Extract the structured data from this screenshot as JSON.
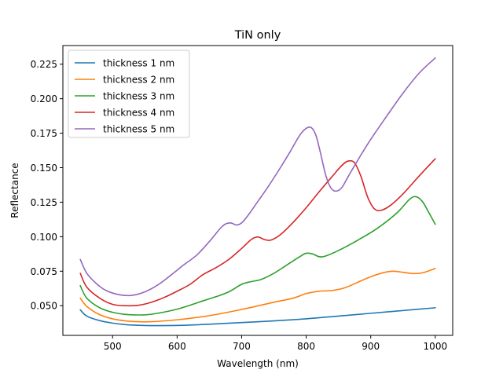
{
  "chart_data": {
    "type": "line",
    "title": "TiN only",
    "xlabel": "Wavelength (nm)",
    "ylabel": "Reflectance",
    "xlim": [
      423,
      1027
    ],
    "ylim": [
      0.0285,
      0.2385
    ],
    "xticks": [
      500,
      600,
      700,
      800,
      900,
      1000
    ],
    "xtick_labels": [
      "500",
      "600",
      "700",
      "800",
      "900",
      "1000"
    ],
    "yticks": [
      0.05,
      0.075,
      0.1,
      0.125,
      0.15,
      0.175,
      0.2,
      0.225
    ],
    "ytick_labels": [
      "0.050",
      "0.075",
      "0.100",
      "0.125",
      "0.150",
      "0.175",
      "0.200",
      "0.225"
    ],
    "grid": false,
    "legend_position": "upper-left",
    "series": [
      {
        "name": "thickness 1 nm",
        "color": "#1f77b4",
        "points": [
          [
            450,
            0.047
          ],
          [
            460,
            0.0425
          ],
          [
            480,
            0.0392
          ],
          [
            500,
            0.0374
          ],
          [
            520,
            0.0363
          ],
          [
            540,
            0.0358
          ],
          [
            560,
            0.0356
          ],
          [
            600,
            0.0357
          ],
          [
            650,
            0.0366
          ],
          [
            700,
            0.0378
          ],
          [
            750,
            0.039
          ],
          [
            800,
            0.0405
          ],
          [
            850,
            0.0425
          ],
          [
            900,
            0.0445
          ],
          [
            950,
            0.0465
          ],
          [
            1000,
            0.0485
          ]
        ]
      },
      {
        "name": "thickness 2 nm",
        "color": "#ff7f0e",
        "points": [
          [
            450,
            0.0555
          ],
          [
            460,
            0.0495
          ],
          [
            480,
            0.0435
          ],
          [
            500,
            0.0405
          ],
          [
            520,
            0.039
          ],
          [
            540,
            0.0384
          ],
          [
            560,
            0.0384
          ],
          [
            600,
            0.0398
          ],
          [
            650,
            0.0428
          ],
          [
            700,
            0.0473
          ],
          [
            750,
            0.0525
          ],
          [
            780,
            0.0555
          ],
          [
            800,
            0.0588
          ],
          [
            820,
            0.0605
          ],
          [
            840,
            0.061
          ],
          [
            860,
            0.063
          ],
          [
            880,
            0.067
          ],
          [
            900,
            0.071
          ],
          [
            920,
            0.074
          ],
          [
            935,
            0.075
          ],
          [
            950,
            0.0742
          ],
          [
            965,
            0.0733
          ],
          [
            980,
            0.0738
          ],
          [
            1000,
            0.077
          ]
        ]
      },
      {
        "name": "thickness 3 nm",
        "color": "#2ca02c",
        "points": [
          [
            450,
            0.0645
          ],
          [
            460,
            0.0555
          ],
          [
            480,
            0.0485
          ],
          [
            500,
            0.0452
          ],
          [
            520,
            0.0437
          ],
          [
            540,
            0.0433
          ],
          [
            560,
            0.0438
          ],
          [
            600,
            0.0475
          ],
          [
            640,
            0.0535
          ],
          [
            660,
            0.0565
          ],
          [
            680,
            0.06
          ],
          [
            700,
            0.0655
          ],
          [
            715,
            0.0675
          ],
          [
            730,
            0.069
          ],
          [
            750,
            0.0735
          ],
          [
            770,
            0.0795
          ],
          [
            790,
            0.0855
          ],
          [
            800,
            0.088
          ],
          [
            810,
            0.0875
          ],
          [
            820,
            0.0855
          ],
          [
            830,
            0.086
          ],
          [
            850,
            0.09
          ],
          [
            880,
            0.0975
          ],
          [
            910,
            0.106
          ],
          [
            940,
            0.117
          ],
          [
            960,
            0.127
          ],
          [
            970,
            0.129
          ],
          [
            980,
            0.1255
          ],
          [
            990,
            0.1175
          ],
          [
            1000,
            0.109
          ]
        ]
      },
      {
        "name": "thickness 4 nm",
        "color": "#d62728",
        "points": [
          [
            450,
            0.0735
          ],
          [
            460,
            0.0635
          ],
          [
            480,
            0.0555
          ],
          [
            500,
            0.051
          ],
          [
            520,
            0.05
          ],
          [
            540,
            0.0503
          ],
          [
            560,
            0.0525
          ],
          [
            580,
            0.056
          ],
          [
            600,
            0.0605
          ],
          [
            620,
            0.0655
          ],
          [
            640,
            0.0725
          ],
          [
            660,
            0.0775
          ],
          [
            680,
            0.0835
          ],
          [
            700,
            0.0915
          ],
          [
            715,
            0.098
          ],
          [
            725,
            0.0998
          ],
          [
            735,
            0.098
          ],
          [
            745,
            0.0975
          ],
          [
            760,
            0.1015
          ],
          [
            780,
            0.1105
          ],
          [
            800,
            0.121
          ],
          [
            820,
            0.1325
          ],
          [
            840,
            0.1435
          ],
          [
            855,
            0.1515
          ],
          [
            865,
            0.1548
          ],
          [
            875,
            0.1535
          ],
          [
            885,
            0.1435
          ],
          [
            895,
            0.129
          ],
          [
            905,
            0.1205
          ],
          [
            915,
            0.119
          ],
          [
            930,
            0.1225
          ],
          [
            950,
            0.131
          ],
          [
            975,
            0.144
          ],
          [
            1000,
            0.1565
          ]
        ]
      },
      {
        "name": "thickness 5 nm",
        "color": "#9467bd",
        "points": [
          [
            450,
            0.0835
          ],
          [
            460,
            0.0735
          ],
          [
            475,
            0.066
          ],
          [
            490,
            0.061
          ],
          [
            510,
            0.058
          ],
          [
            530,
            0.0575
          ],
          [
            550,
            0.06
          ],
          [
            570,
            0.065
          ],
          [
            590,
            0.072
          ],
          [
            610,
            0.0795
          ],
          [
            630,
            0.0865
          ],
          [
            650,
            0.0965
          ],
          [
            670,
            0.1075
          ],
          [
            682,
            0.11
          ],
          [
            692,
            0.1085
          ],
          [
            700,
            0.11
          ],
          [
            710,
            0.1155
          ],
          [
            725,
            0.1255
          ],
          [
            740,
            0.1355
          ],
          [
            760,
            0.15
          ],
          [
            775,
            0.1615
          ],
          [
            790,
            0.1735
          ],
          [
            800,
            0.1785
          ],
          [
            808,
            0.179
          ],
          [
            815,
            0.1735
          ],
          [
            822,
            0.161
          ],
          [
            830,
            0.145
          ],
          [
            838,
            0.1355
          ],
          [
            846,
            0.133
          ],
          [
            855,
            0.1355
          ],
          [
            865,
            0.1435
          ],
          [
            880,
            0.1555
          ],
          [
            900,
            0.1705
          ],
          [
            925,
            0.1875
          ],
          [
            950,
            0.204
          ],
          [
            975,
            0.2185
          ],
          [
            1000,
            0.2295
          ]
        ]
      }
    ]
  }
}
